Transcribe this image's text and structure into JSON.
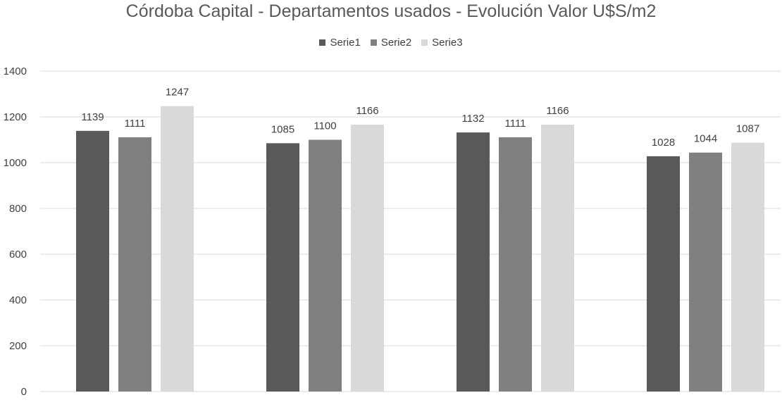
{
  "chart_data": {
    "type": "bar",
    "title": "Córdoba Capital - Departamentos usados - Evolución Valor U$S/m2",
    "categories": [
      "",
      "",
      "",
      ""
    ],
    "series": [
      {
        "name": "Serie1",
        "color": "#595959",
        "values": [
          1139,
          1085,
          1132,
          1028
        ]
      },
      {
        "name": "Serie2",
        "color": "#808080",
        "values": [
          1111,
          1100,
          1111,
          1044
        ]
      },
      {
        "name": "Serie3",
        "color": "#d9d9d9",
        "values": [
          1247,
          1166,
          1166,
          1087
        ]
      }
    ],
    "ylim": [
      0,
      1400
    ],
    "yticks": [
      0,
      200,
      400,
      600,
      800,
      1000,
      1200,
      1400
    ],
    "xlabel": "",
    "ylabel": "",
    "grid": true,
    "legend_position": "top-center"
  }
}
